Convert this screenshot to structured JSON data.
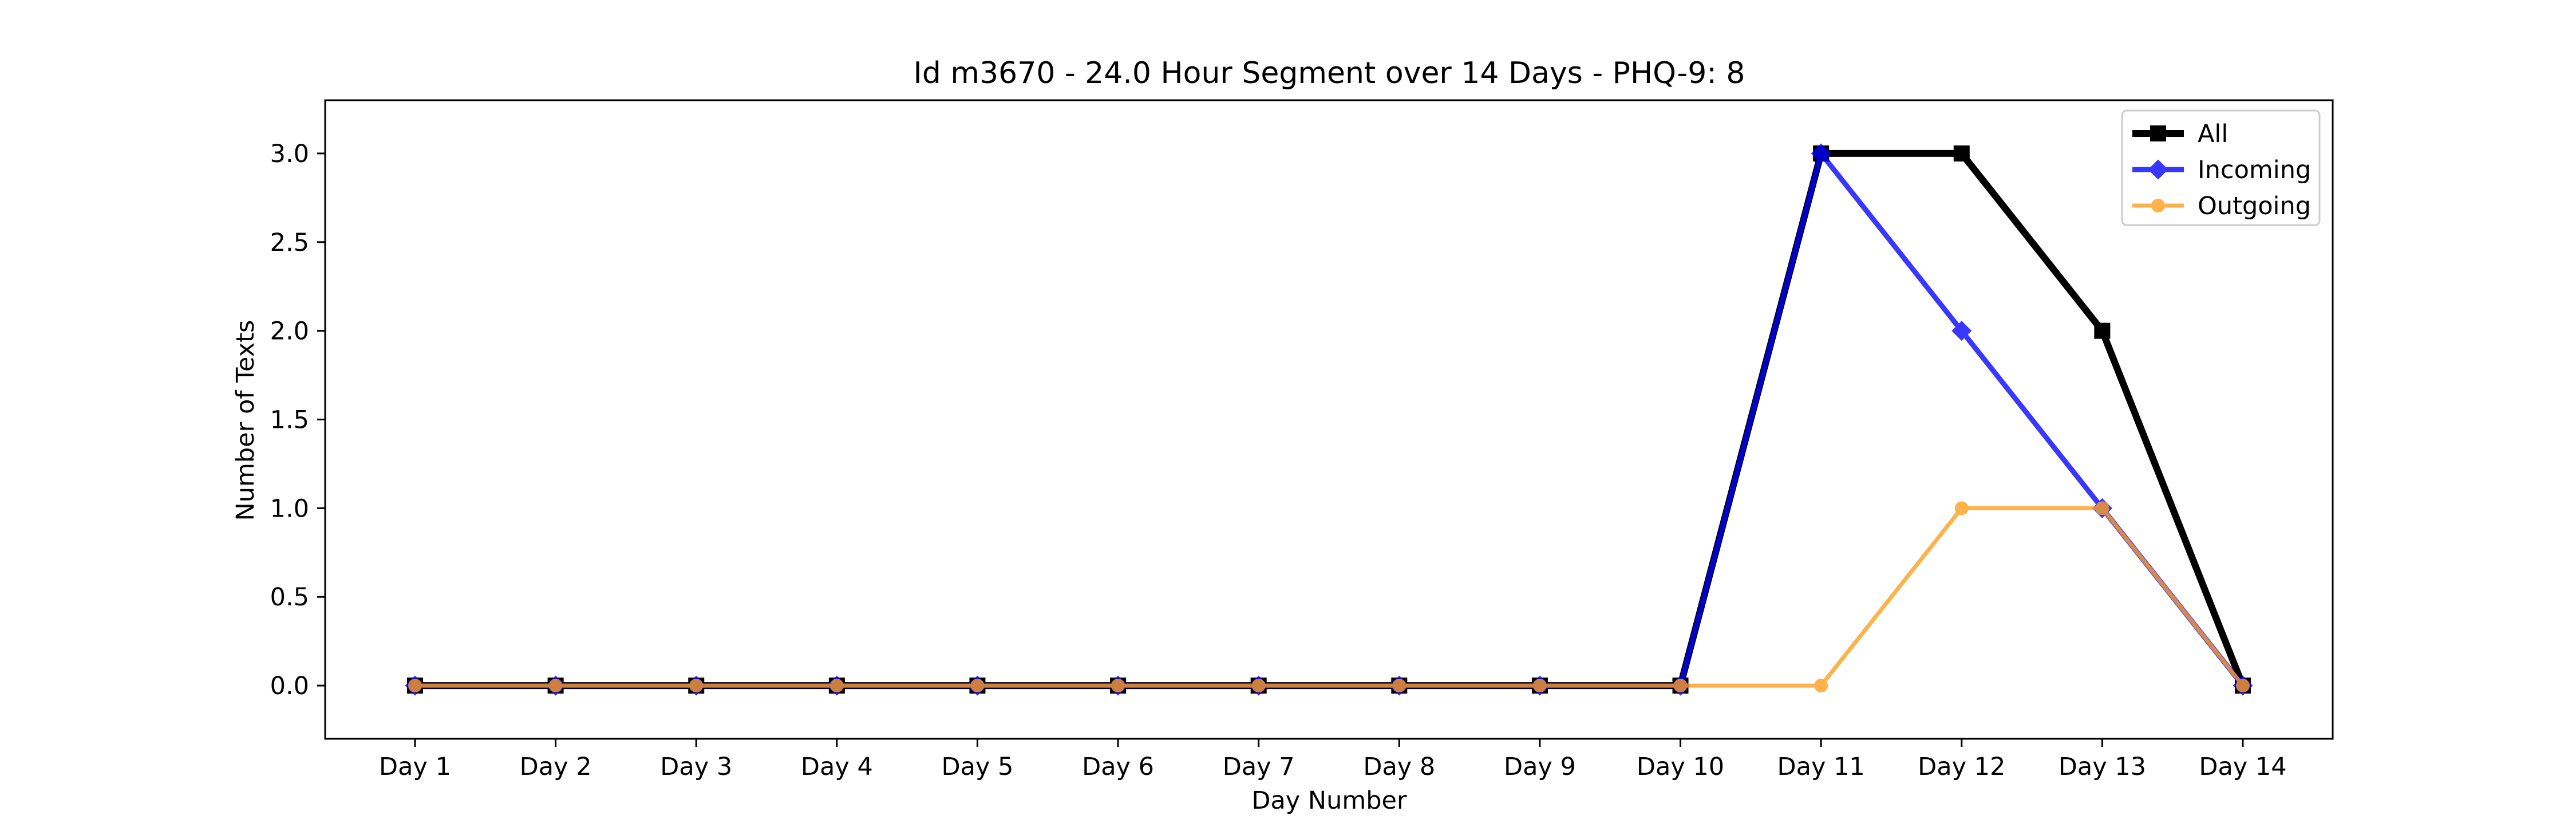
{
  "chart_data": {
    "type": "line",
    "title": "Id m3670 - 24.0 Hour Segment over 14 Days - PHQ-9: 8",
    "xlabel": "Day Number",
    "ylabel": "Number of Texts",
    "categories": [
      "Day 1",
      "Day 2",
      "Day 3",
      "Day 4",
      "Day 5",
      "Day 6",
      "Day 7",
      "Day 8",
      "Day 9",
      "Day 10",
      "Day 11",
      "Day 12",
      "Day 13",
      "Day 14"
    ],
    "ylim": [
      -0.3,
      3.3
    ],
    "yticks": [
      0.0,
      0.5,
      1.0,
      1.5,
      2.0,
      2.5,
      3.0
    ],
    "ytick_labels": [
      "0.0",
      "0.5",
      "1.0",
      "1.5",
      "2.0",
      "2.5",
      "3.0"
    ],
    "grid": false,
    "legend_position": "top-right",
    "series": [
      {
        "name": "All",
        "values": [
          0,
          0,
          0,
          0,
          0,
          0,
          0,
          0,
          0,
          0,
          3,
          3,
          2,
          0
        ],
        "color": "#000000",
        "marker": "square"
      },
      {
        "name": "Incoming",
        "values": [
          0,
          0,
          0,
          0,
          0,
          0,
          0,
          0,
          0,
          0,
          3,
          2,
          1,
          0
        ],
        "color": "#0000ff",
        "marker": "diamond"
      },
      {
        "name": "Outgoing",
        "values": [
          0,
          0,
          0,
          0,
          0,
          0,
          0,
          0,
          0,
          0,
          0,
          1,
          1,
          0
        ],
        "color": "#ff9f1c",
        "marker": "circle"
      }
    ]
  }
}
